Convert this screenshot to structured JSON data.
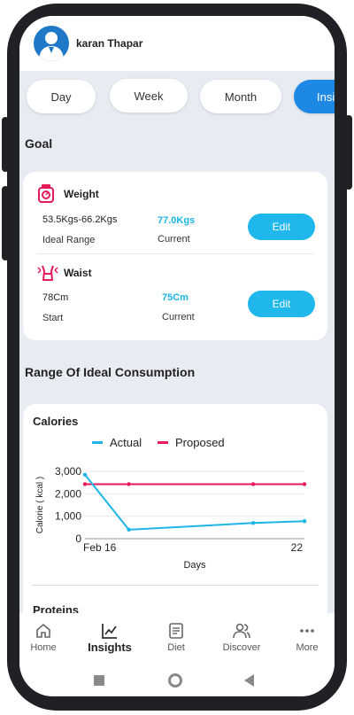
{
  "header": {
    "user_name": "karan Thapar"
  },
  "tabs": [
    {
      "label": "Day"
    },
    {
      "label": "Week"
    },
    {
      "label": "Month"
    },
    {
      "label": "Insi"
    }
  ],
  "goal": {
    "title": "Goal",
    "weight": {
      "name": "Weight",
      "range_value": "53.5Kgs-66.2Kgs",
      "range_label": "Ideal Range",
      "current_value": "77.0Kgs",
      "current_label": "Current",
      "edit_label": "Edit"
    },
    "waist": {
      "name": "Waist",
      "start_value": "78Cm",
      "start_label": "Start",
      "current_value": "75Cm",
      "current_label": "Current",
      "edit_label": "Edit"
    }
  },
  "consumption": {
    "title": "Range Of Ideal Consumption",
    "calories_title": "Calories",
    "proteins_title": "Proteins"
  },
  "chart_data": {
    "type": "line",
    "title": "Calories",
    "xlabel": "Days",
    "ylabel": "Calorie ( kcal )",
    "x_tick_labels": [
      "Feb 16",
      "22"
    ],
    "y_ticks": [
      "0",
      "1,000",
      "2,000",
      "3,000"
    ],
    "ylim": [
      0,
      3000
    ],
    "xlim": [
      16,
      22
    ],
    "grid": true,
    "legend_position": "top",
    "series": [
      {
        "name": "Actual",
        "color": "#1db5e6",
        "x": [
          16,
          17.2,
          20.6,
          22
        ],
        "y": [
          2850,
          400,
          700,
          780
        ]
      },
      {
        "name": "Proposed",
        "color": "#e6195a",
        "x": [
          16,
          17.2,
          20.6,
          22
        ],
        "y": [
          2430,
          2430,
          2430,
          2430
        ]
      }
    ]
  },
  "nav": [
    {
      "label": "Home",
      "icon": "home-icon"
    },
    {
      "label": "Insights",
      "icon": "insights-icon"
    },
    {
      "label": "Diet",
      "icon": "diet-icon"
    },
    {
      "label": "Discover",
      "icon": "discover-icon"
    },
    {
      "label": "More",
      "icon": "more-icon"
    }
  ],
  "colors": {
    "accent": "#1fb7ec",
    "tab_active": "#1e88e5",
    "actual": "#1db5e6",
    "proposed": "#e6195a",
    "icon_pink": "#e6195a"
  }
}
